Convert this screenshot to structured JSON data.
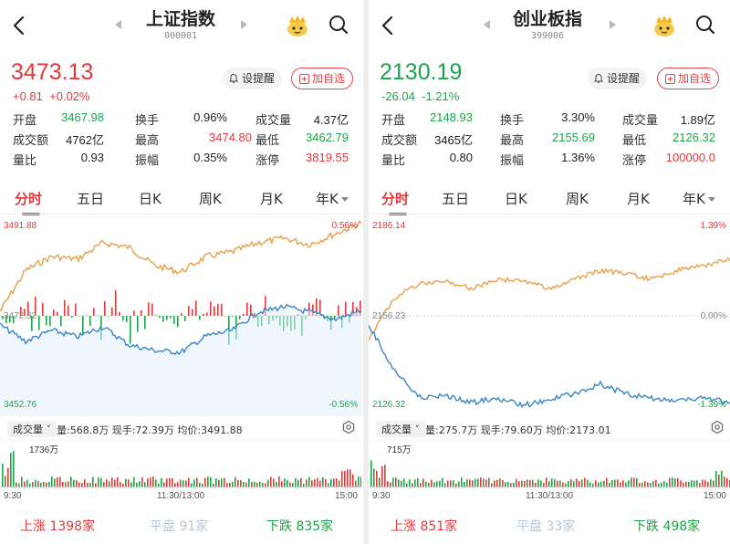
{
  "colors": {
    "up": "#e03a3a",
    "down": "#1fa34a",
    "price_line": "#e8a04a",
    "avg_line": "#3a86c6",
    "flat": "#b5c7d9"
  },
  "panels": [
    {
      "title": "上证指数",
      "code": "000001",
      "price": "3473.13",
      "change": "+0.81",
      "change_pct": "+0.02%",
      "trend": "up",
      "alert_label": "设提醒",
      "add_label": "加自选",
      "stats": {
        "open_label": "开盘",
        "open": "3467.98",
        "turnover_rate_label": "换手",
        "turnover_rate": "0.96%",
        "volume_label": "成交量",
        "volume": "4.37亿",
        "amount_label": "成交额",
        "amount": "4762亿",
        "high_label": "最高",
        "high": "3474.80",
        "low_label": "最低",
        "low": "3462.79",
        "vol_ratio_label": "量比",
        "vol_ratio": "0.93",
        "amplitude_label": "振幅",
        "amplitude": "0.35%",
        "limit_up_label": "涨停",
        "limit_up": "3819.55"
      },
      "tabs": [
        "分时",
        "五日",
        "日K",
        "周K",
        "月K",
        "年K"
      ],
      "chart": {
        "top_price": "3491.88",
        "top_pct": "0.56%",
        "mid_price": "3472.32",
        "mid_pct": "",
        "bottom_price": "3452.76",
        "bottom_pct": "-0.56%"
      },
      "volume_bar": {
        "select_label": "成交量",
        "info": "量:568.8万 现手:72.39万 均价:3491.88",
        "max_label": "1736万",
        "time_start": "9:30",
        "time_mid": "11:30/13:00",
        "time_end": "15:00"
      },
      "footer": {
        "up_label": "上涨",
        "up_count": "1398家",
        "flat_label": "平盘",
        "flat_count": "91家",
        "down_label": "下跌",
        "down_count": "835家"
      }
    },
    {
      "title": "创业板指",
      "code": "399006",
      "price": "2130.19",
      "change": "-26.04",
      "change_pct": "-1.21%",
      "trend": "down",
      "alert_label": "设提醒",
      "add_label": "加自选",
      "stats": {
        "open_label": "开盘",
        "open": "2148.93",
        "turnover_rate_label": "换手",
        "turnover_rate": "3.30%",
        "volume_label": "成交量",
        "volume": "1.89亿",
        "amount_label": "成交额",
        "amount": "3465亿",
        "high_label": "最高",
        "high": "2155.69",
        "low_label": "最低",
        "low": "2126.32",
        "vol_ratio_label": "量比",
        "vol_ratio": "0.80",
        "amplitude_label": "振幅",
        "amplitude": "1.36%",
        "limit_up_label": "涨停",
        "limit_up": "100000.0"
      },
      "tabs": [
        "分时",
        "五日",
        "日K",
        "周K",
        "月K",
        "年K"
      ],
      "chart": {
        "top_price": "2186.14",
        "top_pct": "1.39%",
        "mid_price": "2156.23",
        "mid_pct": "0.00%",
        "bottom_price": "2126.32",
        "bottom_pct": "-1.39%"
      },
      "volume_bar": {
        "select_label": "成交量",
        "info": "量:275.7万 现手:79.60万 均价:2173.01",
        "max_label": "715万",
        "time_start": "9:30",
        "time_mid": "11:30/13:00",
        "time_end": "15:00"
      },
      "footer": {
        "up_label": "上涨",
        "up_count": "851家",
        "flat_label": "平盘",
        "flat_count": "33家",
        "down_label": "下跌",
        "down_count": "498家"
      }
    }
  ]
}
